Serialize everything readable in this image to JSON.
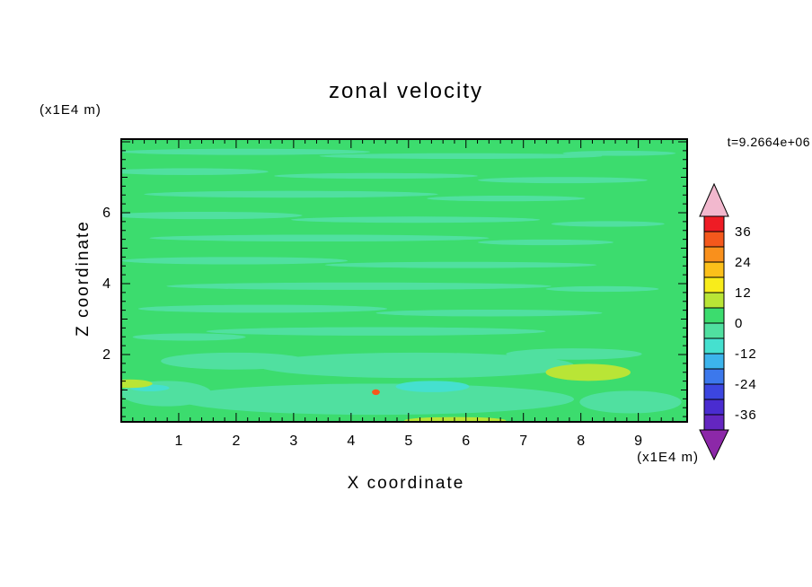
{
  "chart_data": {
    "type": "heatmap",
    "title": "zonal velocity",
    "time_annotation": "t=9.2664e+06",
    "xlabel": "X coordinate",
    "ylabel": "Z coordinate",
    "x_unit": "(x1E4 m)",
    "y_unit": "(x1E4 m)",
    "xlim": [
      0,
      9.85
    ],
    "ylim": [
      0,
      8.05
    ],
    "x_ticks": [
      1,
      2,
      3,
      4,
      5,
      6,
      7,
      8,
      9
    ],
    "y_ticks": [
      2,
      4,
      6
    ],
    "grid": false,
    "legend_position": "right-colorbar",
    "colorbar": {
      "tick_values": [
        36,
        24,
        12,
        0,
        -12,
        -24,
        -36
      ],
      "level_step": 6,
      "over_color": "#f2b8ce",
      "under_color": "#8c28a8",
      "cells_top_to_bottom": [
        {
          "from": 36,
          "to": 42,
          "color": "#ee1c25"
        },
        {
          "from": 30,
          "to": 36,
          "color": "#f4581c"
        },
        {
          "from": 24,
          "to": 30,
          "color": "#f9901c"
        },
        {
          "from": 18,
          "to": 24,
          "color": "#fcc01a"
        },
        {
          "from": 12,
          "to": 18,
          "color": "#f8ec1b"
        },
        {
          "from": 6,
          "to": 12,
          "color": "#b9e536"
        },
        {
          "from": 0,
          "to": 6,
          "color": "#3cdc6e"
        },
        {
          "from": -6,
          "to": 0,
          "color": "#50e0a0"
        },
        {
          "from": -12,
          "to": -6,
          "color": "#45e0cf"
        },
        {
          "from": -18,
          "to": -12,
          "color": "#3cb4ec"
        },
        {
          "from": -24,
          "to": -18,
          "color": "#3c78ec"
        },
        {
          "from": -30,
          "to": -24,
          "color": "#3c46e0"
        },
        {
          "from": -36,
          "to": -30,
          "color": "#4a2cd0"
        },
        {
          "from": -42,
          "to": -36,
          "color": "#6426c0"
        }
      ]
    },
    "field": {
      "description": "Filled-contour field dominated by the 0-6 band, with thin -6-0 streaks throughout and patches of 6-12, -12--6 near the bottom boundary",
      "base_band": [
        0,
        6
      ],
      "base_color": "#3cdc6e",
      "regions": [
        {
          "band": [
            -6,
            0
          ],
          "color": "#50e0a0",
          "x": 0.22,
          "y": 0.045,
          "rx": 0.22,
          "ry": 0.011
        },
        {
          "band": [
            -6,
            0
          ],
          "color": "#50e0a0",
          "x": 0.6,
          "y": 0.06,
          "rx": 0.25,
          "ry": 0.01
        },
        {
          "band": [
            -6,
            0
          ],
          "color": "#50e0a0",
          "x": 0.88,
          "y": 0.05,
          "rx": 0.1,
          "ry": 0.009
        },
        {
          "band": [
            -6,
            0
          ],
          "color": "#50e0a0",
          "x": 0.12,
          "y": 0.115,
          "rx": 0.14,
          "ry": 0.012
        },
        {
          "band": [
            -6,
            0
          ],
          "color": "#50e0a0",
          "x": 0.45,
          "y": 0.13,
          "rx": 0.18,
          "ry": 0.01
        },
        {
          "band": [
            -6,
            0
          ],
          "color": "#50e0a0",
          "x": 0.78,
          "y": 0.145,
          "rx": 0.15,
          "ry": 0.011
        },
        {
          "band": [
            -6,
            0
          ],
          "color": "#50e0a0",
          "x": 0.3,
          "y": 0.195,
          "rx": 0.26,
          "ry": 0.012
        },
        {
          "band": [
            -6,
            0
          ],
          "color": "#50e0a0",
          "x": 0.68,
          "y": 0.21,
          "rx": 0.14,
          "ry": 0.01
        },
        {
          "band": [
            -6,
            0
          ],
          "color": "#50e0a0",
          "x": 0.15,
          "y": 0.27,
          "rx": 0.17,
          "ry": 0.013
        },
        {
          "band": [
            -6,
            0
          ],
          "color": "#50e0a0",
          "x": 0.52,
          "y": 0.285,
          "rx": 0.22,
          "ry": 0.011
        },
        {
          "band": [
            -6,
            0
          ],
          "color": "#50e0a0",
          "x": 0.86,
          "y": 0.3,
          "rx": 0.1,
          "ry": 0.01
        },
        {
          "band": [
            -6,
            0
          ],
          "color": "#50e0a0",
          "x": 0.35,
          "y": 0.35,
          "rx": 0.3,
          "ry": 0.012
        },
        {
          "band": [
            -6,
            0
          ],
          "color": "#50e0a0",
          "x": 0.75,
          "y": 0.365,
          "rx": 0.12,
          "ry": 0.01
        },
        {
          "band": [
            -6,
            0
          ],
          "color": "#50e0a0",
          "x": 0.2,
          "y": 0.43,
          "rx": 0.2,
          "ry": 0.013
        },
        {
          "band": [
            -6,
            0
          ],
          "color": "#50e0a0",
          "x": 0.6,
          "y": 0.445,
          "rx": 0.24,
          "ry": 0.011
        },
        {
          "band": [
            -6,
            0
          ],
          "color": "#50e0a0",
          "x": 0.42,
          "y": 0.52,
          "rx": 0.34,
          "ry": 0.013
        },
        {
          "band": [
            -6,
            0
          ],
          "color": "#50e0a0",
          "x": 0.85,
          "y": 0.53,
          "rx": 0.1,
          "ry": 0.01
        },
        {
          "band": [
            -6,
            0
          ],
          "color": "#50e0a0",
          "x": 0.25,
          "y": 0.6,
          "rx": 0.22,
          "ry": 0.014
        },
        {
          "band": [
            -6,
            0
          ],
          "color": "#50e0a0",
          "x": 0.65,
          "y": 0.615,
          "rx": 0.2,
          "ry": 0.012
        },
        {
          "band": [
            -6,
            0
          ],
          "color": "#50e0a0",
          "x": 0.45,
          "y": 0.68,
          "rx": 0.3,
          "ry": 0.015
        },
        {
          "band": [
            -6,
            0
          ],
          "color": "#50e0a0",
          "x": 0.12,
          "y": 0.7,
          "rx": 0.1,
          "ry": 0.013
        },
        {
          "band": [
            -6,
            0
          ],
          "color": "#50e0a0",
          "x": 0.52,
          "y": 0.8,
          "rx": 0.28,
          "ry": 0.045
        },
        {
          "band": [
            -6,
            0
          ],
          "color": "#50e0a0",
          "x": 0.2,
          "y": 0.785,
          "rx": 0.13,
          "ry": 0.03
        },
        {
          "band": [
            -6,
            0
          ],
          "color": "#50e0a0",
          "x": 0.8,
          "y": 0.76,
          "rx": 0.12,
          "ry": 0.02
        },
        {
          "band": [
            -6,
            0
          ],
          "color": "#50e0a0",
          "x": 0.45,
          "y": 0.92,
          "rx": 0.35,
          "ry": 0.055
        },
        {
          "band": [
            -6,
            0
          ],
          "color": "#50e0a0",
          "x": 0.08,
          "y": 0.9,
          "rx": 0.08,
          "ry": 0.045
        },
        {
          "band": [
            -6,
            0
          ],
          "color": "#50e0a0",
          "x": 0.9,
          "y": 0.93,
          "rx": 0.09,
          "ry": 0.04
        },
        {
          "band": [
            -12,
            -6
          ],
          "color": "#45e0cf",
          "x": 0.55,
          "y": 0.875,
          "rx": 0.065,
          "ry": 0.02
        },
        {
          "band": [
            -12,
            -6
          ],
          "color": "#45e0cf",
          "x": 0.05,
          "y": 0.88,
          "rx": 0.035,
          "ry": 0.012
        },
        {
          "band": [
            6,
            12
          ],
          "color": "#b9e536",
          "x": 0.825,
          "y": 0.825,
          "rx": 0.075,
          "ry": 0.03
        },
        {
          "band": [
            6,
            12
          ],
          "color": "#b9e536",
          "x": 0.015,
          "y": 0.865,
          "rx": 0.04,
          "ry": 0.015
        },
        {
          "band": [
            6,
            12
          ],
          "color": "#b9e536",
          "x": 0.59,
          "y": 0.995,
          "rx": 0.09,
          "ry": 0.012
        },
        {
          "band": [
            30,
            36
          ],
          "color": "#f4581c",
          "x": 0.45,
          "y": 0.895,
          "rx": 0.007,
          "ry": 0.01
        }
      ]
    }
  }
}
